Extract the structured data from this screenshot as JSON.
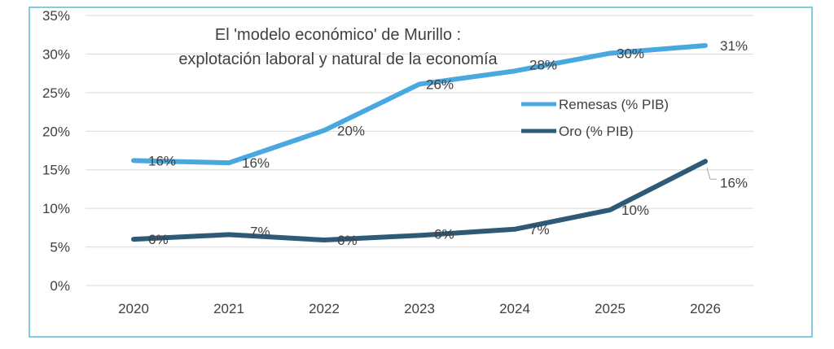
{
  "chart_data": {
    "type": "line",
    "title": [
      "El 'modelo económico' de Murillo :",
      "explotación laboral y natural de la economía"
    ],
    "categories": [
      "2020",
      "2021",
      "2022",
      "2023",
      "2024",
      "2025",
      "2026"
    ],
    "y_ticks": [
      "0%",
      "5%",
      "10%",
      "15%",
      "20%",
      "25%",
      "30%",
      "35%"
    ],
    "ylim": [
      0,
      35
    ],
    "grid": true,
    "legend_position": "right",
    "series": [
      {
        "name": "Remesas (% PIB)",
        "color": "#4aa8e0",
        "values": [
          16.2,
          15.9,
          20.1,
          26.1,
          27.8,
          30.1,
          31.1
        ],
        "labels": [
          "16%",
          "16%",
          "20%",
          "26%",
          "28%",
          "30%",
          "31%"
        ]
      },
      {
        "name": "Oro (% PIB)",
        "color": "#2e5a78",
        "values": [
          6.0,
          6.6,
          5.9,
          6.5,
          7.3,
          9.8,
          16.1
        ],
        "labels": [
          "6%",
          "7%",
          "6%",
          "6%",
          "7%",
          "10%",
          "16%"
        ]
      }
    ]
  }
}
